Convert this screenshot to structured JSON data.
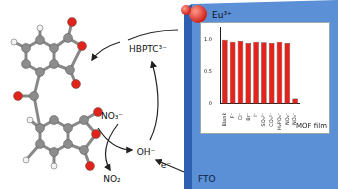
{
  "labels": {
    "ligand": "HBPTC³⁻",
    "metal": "Eu³⁺",
    "hydroxide": "OH⁻",
    "nitrate": "NO₃⁻",
    "nitrite": "NO₂",
    "electron": "e⁻",
    "electrode": "FTO"
  },
  "chart_data": {
    "type": "bar",
    "annotation": "MOF film",
    "categories": [
      "Blank",
      "F⁻",
      "Cl⁻",
      "Br⁻",
      "I⁻",
      "SO₄²⁻",
      "CO₃²⁻",
      "H₂PO₄⁻",
      "NO₂⁻",
      "NO₃⁻"
    ],
    "values": [
      1.0,
      0.97,
      0.98,
      0.95,
      0.97,
      0.96,
      0.95,
      0.97,
      0.95,
      0.08
    ],
    "color": "#e3231c",
    "ylim": [
      0,
      1.2
    ],
    "yticks": [
      0,
      0.5,
      {
        "value": 1,
        "label": "1.0"
      }
    ],
    "grid": false
  }
}
